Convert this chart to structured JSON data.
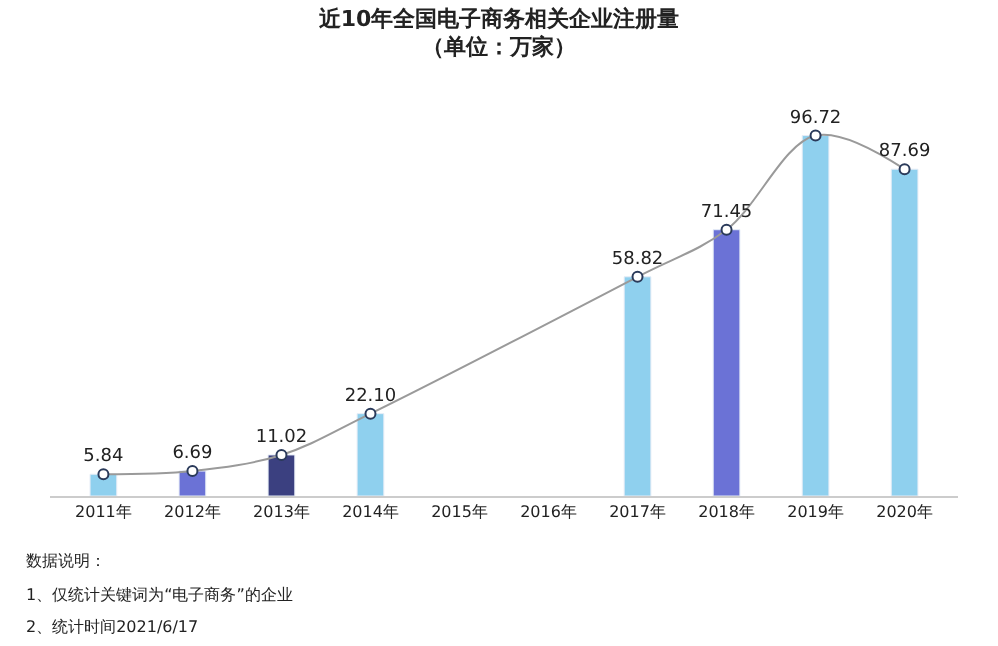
{
  "chart_data": {
    "type": "bar",
    "title": "近10年全国电子商务相关企业注册量",
    "subtitle": "（单位：万家）",
    "categories": [
      "2011年",
      "2012年",
      "2013年",
      "2014年",
      "2015年",
      "2016年",
      "2017年",
      "2018年",
      "2019年",
      "2020年"
    ],
    "series": [
      {
        "colors": [
          "#8fd0ee",
          "#6b72d6",
          "#3b4080",
          "#8fd0ee",
          "#6b72d6",
          "#3b4080",
          "#8fd0ee",
          "#6b72d6",
          "#8fd0ee",
          "#8fd0ee"
        ],
        "values": [
          5.84,
          6.69,
          11.02,
          22.1,
          null,
          null,
          58.82,
          71.45,
          96.72,
          87.69
        ]
      },
      {
        "type": "line",
        "color": "#9a9a9a",
        "marker": "circle",
        "values": [
          5.84,
          6.69,
          11.02,
          22.1,
          null,
          null,
          58.82,
          71.45,
          96.72,
          87.69
        ],
        "value_labels": [
          "5.84",
          "6.69",
          "11.02",
          "22.10",
          null,
          null,
          "58.82",
          "71.45",
          "96.72",
          "87.69"
        ]
      }
    ],
    "legend": false,
    "annotations": [
      "数据说明：",
      "1、仅统计关键词为“电子商务”的企业",
      "2、统计时间2021/6/17"
    ]
  }
}
